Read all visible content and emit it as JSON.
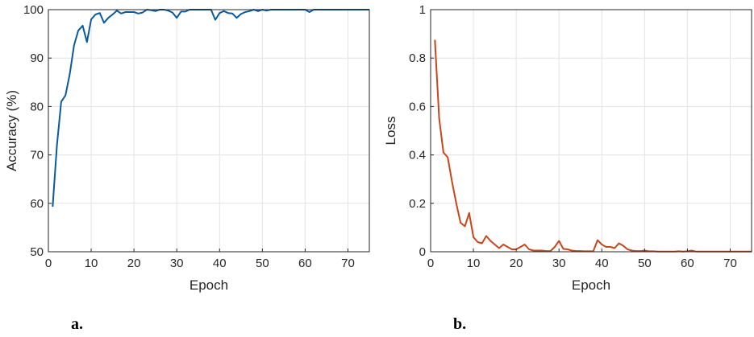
{
  "chart_data": [
    {
      "type": "line",
      "panel_label": "a.",
      "xlabel": "Epoch",
      "ylabel": "Accuracy (%)",
      "xlim": [
        0,
        75
      ],
      "ylim": [
        50,
        100
      ],
      "xticks": [
        0,
        10,
        20,
        30,
        40,
        50,
        60,
        70
      ],
      "yticks": [
        50,
        60,
        70,
        80,
        90,
        100
      ],
      "grid": true,
      "color": "#0a5aa0",
      "x": [
        1,
        2,
        3,
        4,
        5,
        6,
        7,
        8,
        9,
        10,
        11,
        12,
        13,
        14,
        15,
        16,
        17,
        18,
        19,
        20,
        21,
        22,
        23,
        24,
        25,
        26,
        27,
        28,
        29,
        30,
        31,
        32,
        33,
        34,
        35,
        36,
        37,
        38,
        39,
        40,
        41,
        42,
        43,
        44,
        45,
        46,
        47,
        48,
        49,
        50,
        51,
        52,
        53,
        54,
        55,
        56,
        57,
        58,
        59,
        60,
        61,
        62,
        63,
        64,
        65,
        66,
        67,
        68,
        69,
        70,
        71,
        72,
        73,
        74,
        75
      ],
      "values": [
        59.3,
        72.0,
        81.0,
        82.3,
        86.7,
        92.6,
        95.7,
        96.7,
        93.3,
        98.0,
        99.0,
        99.3,
        97.3,
        98.3,
        99.0,
        99.8,
        99.2,
        99.5,
        99.5,
        99.5,
        99.2,
        99.4,
        100,
        99.9,
        99.7,
        100,
        100,
        99.8,
        99.4,
        98.3,
        99.6,
        99.6,
        100,
        100,
        100,
        100,
        100,
        100,
        97.9,
        99.3,
        99.7,
        99.3,
        99.2,
        98.3,
        99.1,
        99.5,
        99.7,
        100,
        99.7,
        100,
        99.8,
        100,
        100,
        100,
        100,
        100,
        100,
        100,
        100,
        100,
        99.5,
        100,
        100,
        100,
        100,
        100,
        100,
        100,
        100,
        100,
        100,
        100,
        100,
        100,
        100
      ]
    },
    {
      "type": "line",
      "panel_label": "b.",
      "xlabel": "Epoch",
      "ylabel": "Loss",
      "xlim": [
        0,
        75
      ],
      "ylim": [
        0,
        1
      ],
      "xticks": [
        0,
        10,
        20,
        30,
        40,
        50,
        60,
        70
      ],
      "yticks": [
        0,
        0.2,
        0.4,
        0.6,
        0.8,
        1
      ],
      "grid": true,
      "color": "#c8461a",
      "x": [
        1,
        2,
        3,
        4,
        5,
        6,
        7,
        8,
        9,
        10,
        11,
        12,
        13,
        14,
        15,
        16,
        17,
        18,
        19,
        20,
        21,
        22,
        23,
        24,
        25,
        26,
        27,
        28,
        29,
        30,
        31,
        32,
        33,
        34,
        35,
        36,
        37,
        38,
        39,
        40,
        41,
        42,
        43,
        44,
        45,
        46,
        47,
        48,
        49,
        50,
        51,
        52,
        53,
        54,
        55,
        56,
        57,
        58,
        59,
        60,
        61,
        62,
        63,
        64,
        65,
        66,
        67,
        68,
        69,
        70,
        71,
        72,
        73,
        74,
        75
      ],
      "values": [
        0.875,
        0.55,
        0.41,
        0.39,
        0.29,
        0.2,
        0.12,
        0.105,
        0.16,
        0.06,
        0.04,
        0.035,
        0.065,
        0.045,
        0.03,
        0.015,
        0.03,
        0.02,
        0.01,
        0.01,
        0.02,
        0.03,
        0.01,
        0.005,
        0.005,
        0.005,
        0.003,
        0.003,
        0.02,
        0.045,
        0.012,
        0.01,
        0.005,
        0.003,
        0.003,
        0.002,
        0.002,
        0.002,
        0.048,
        0.03,
        0.02,
        0.02,
        0.015,
        0.035,
        0.025,
        0.01,
        0.005,
        0.003,
        0.003,
        0.005,
        0.002,
        0.002,
        0.001,
        0.001,
        0.001,
        0.001,
        0.001,
        0.002,
        0.001,
        0.002,
        0.005,
        0.001,
        0.001,
        0.001,
        0.001,
        0.001,
        0.001,
        0.001,
        0.001,
        0.001,
        0.001,
        0.001,
        0.001,
        0.001,
        0.001
      ]
    }
  ]
}
